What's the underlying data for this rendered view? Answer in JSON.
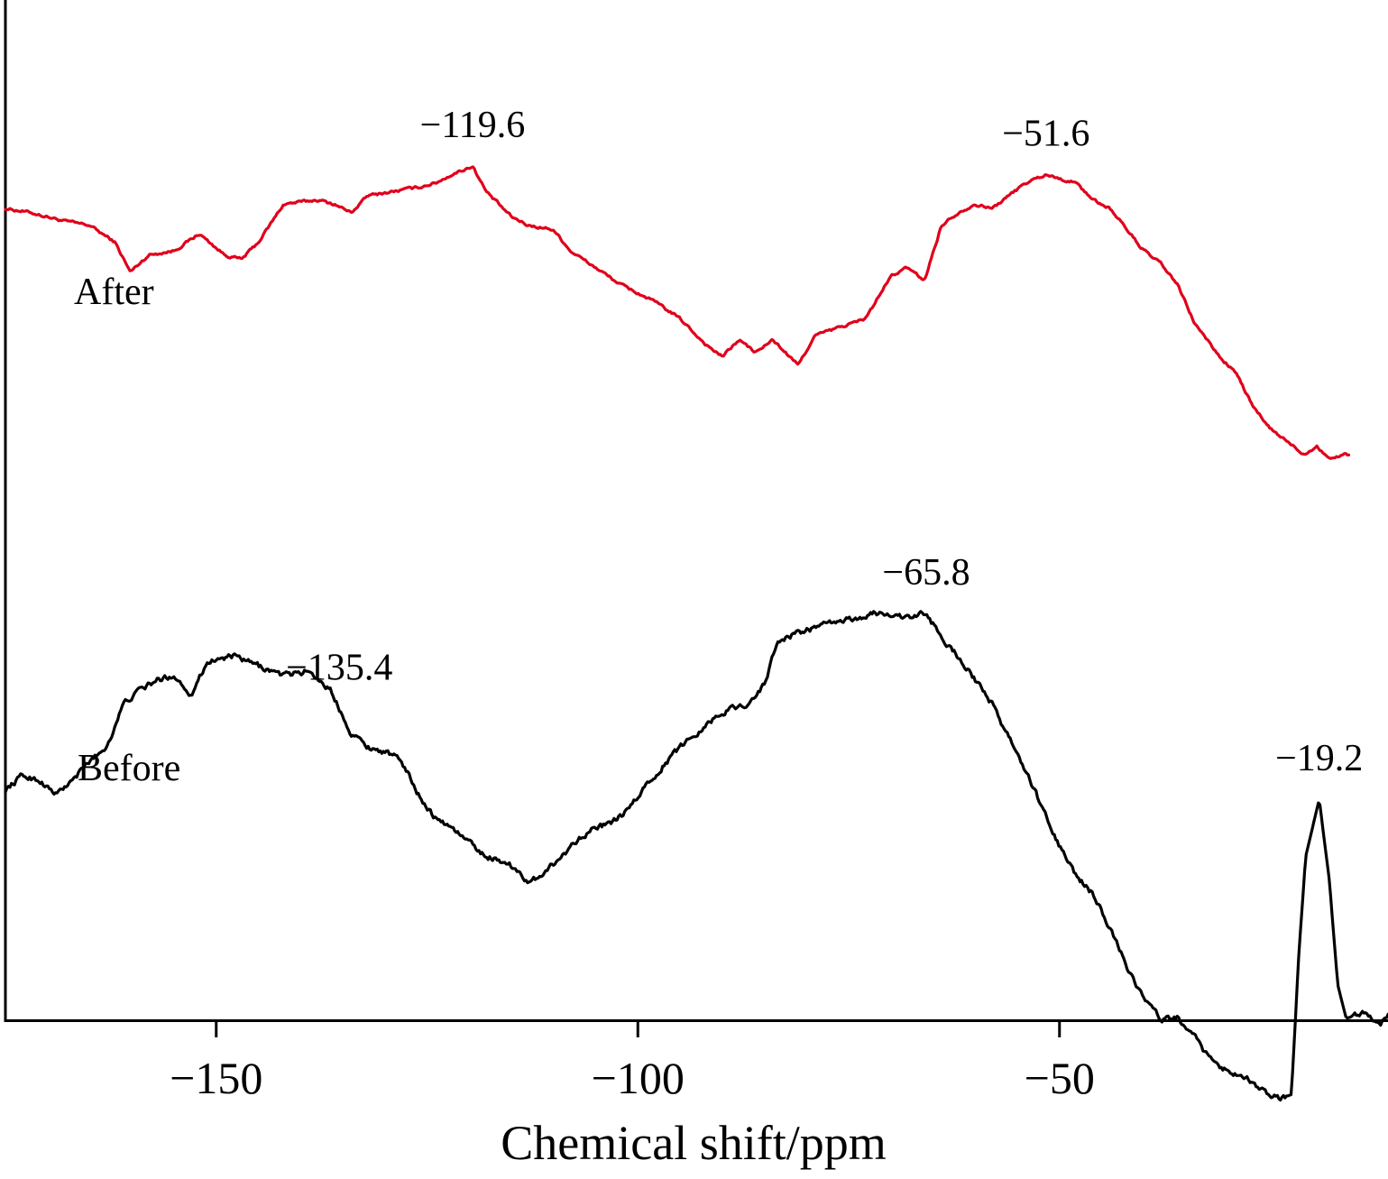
{
  "chart_data": {
    "type": "line",
    "xlabel": "Chemical shift/ppm",
    "ylabel": "",
    "xlim": [
      -175,
      -7
    ],
    "x_ticks": [
      -150,
      -100,
      -50
    ],
    "x_tick_labels": [
      "−150",
      "−100",
      "−50"
    ],
    "yticks": "none",
    "series": [
      {
        "name": "After",
        "color": "#e0001b",
        "points": [
          [
            -175,
            0.7
          ],
          [
            -172,
            0.69
          ],
          [
            -168,
            0.67
          ],
          [
            -165,
            0.66
          ],
          [
            -162,
            0.62
          ],
          [
            -160.2,
            0.55
          ],
          [
            -158,
            0.59
          ],
          [
            -155,
            0.6
          ],
          [
            -152,
            0.64
          ],
          [
            -149,
            0.59
          ],
          [
            -147,
            0.58
          ],
          [
            -145,
            0.62
          ],
          [
            -142,
            0.71
          ],
          [
            -138,
            0.72
          ],
          [
            -136,
            0.71
          ],
          [
            -134,
            0.69
          ],
          [
            -132,
            0.73
          ],
          [
            -129,
            0.74
          ],
          [
            -126,
            0.75
          ],
          [
            -124,
            0.76
          ],
          [
            -122,
            0.78
          ],
          [
            -119.6,
            0.8
          ],
          [
            -118,
            0.74
          ],
          [
            -115,
            0.68
          ],
          [
            -113,
            0.66
          ],
          [
            -110,
            0.65
          ],
          [
            -108,
            0.6
          ],
          [
            -105,
            0.56
          ],
          [
            -102,
            0.52
          ],
          [
            -98,
            0.48
          ],
          [
            -95,
            0.44
          ],
          [
            -92,
            0.38
          ],
          [
            -90,
            0.35
          ],
          [
            -88,
            0.39
          ],
          [
            -86,
            0.36
          ],
          [
            -84,
            0.39
          ],
          [
            -81,
            0.33
          ],
          [
            -79,
            0.4
          ],
          [
            -76,
            0.42
          ],
          [
            -73,
            0.44
          ],
          [
            -70,
            0.54
          ],
          [
            -68,
            0.56
          ],
          [
            -66,
            0.53
          ],
          [
            -64,
            0.66
          ],
          [
            -62,
            0.69
          ],
          [
            -60,
            0.71
          ],
          [
            -58,
            0.7
          ],
          [
            -56,
            0.73
          ],
          [
            -54,
            0.76
          ],
          [
            -51.6,
            0.78
          ],
          [
            -50,
            0.77
          ],
          [
            -48,
            0.76
          ],
          [
            -46,
            0.72
          ],
          [
            -44,
            0.7
          ],
          [
            -42,
            0.65
          ],
          [
            -40,
            0.6
          ],
          [
            -38,
            0.57
          ],
          [
            -36,
            0.52
          ],
          [
            -34,
            0.43
          ],
          [
            -31,
            0.35
          ],
          [
            -29,
            0.31
          ],
          [
            -27,
            0.23
          ],
          [
            -25,
            0.18
          ],
          [
            -23,
            0.15
          ],
          [
            -21,
            0.12
          ],
          [
            -19.5,
            0.14
          ],
          [
            -18,
            0.11
          ],
          [
            -16,
            0.12
          ],
          [
            -15.6,
            0.12
          ]
        ]
      },
      {
        "name": "Before",
        "color": "#000000",
        "points": [
          [
            -175,
            0.34
          ],
          [
            -173,
            0.37
          ],
          [
            -171,
            0.36
          ],
          [
            -169,
            0.33
          ],
          [
            -167,
            0.36
          ],
          [
            -165,
            0.4
          ],
          [
            -163,
            0.43
          ],
          [
            -161,
            0.52
          ],
          [
            -159,
            0.55
          ],
          [
            -157,
            0.57
          ],
          [
            -155,
            0.58
          ],
          [
            -153,
            0.54
          ],
          [
            -151,
            0.61
          ],
          [
            -148,
            0.62
          ],
          [
            -145,
            0.6
          ],
          [
            -142,
            0.58
          ],
          [
            -139,
            0.59
          ],
          [
            -136.5,
            0.55
          ],
          [
            -134,
            0.46
          ],
          [
            -132,
            0.43
          ],
          [
            -130,
            0.42
          ],
          [
            -128,
            0.4
          ],
          [
            -126,
            0.33
          ],
          [
            -124,
            0.28
          ],
          [
            -122,
            0.26
          ],
          [
            -120,
            0.23
          ],
          [
            -118,
            0.2
          ],
          [
            -116,
            0.19
          ],
          [
            -114,
            0.17
          ],
          [
            -113,
            0.14
          ],
          [
            -111,
            0.17
          ],
          [
            -109,
            0.2
          ],
          [
            -107,
            0.24
          ],
          [
            -105,
            0.26
          ],
          [
            -103,
            0.27
          ],
          [
            -101,
            0.3
          ],
          [
            -99,
            0.35
          ],
          [
            -97,
            0.39
          ],
          [
            -95,
            0.43
          ],
          [
            -93,
            0.46
          ],
          [
            -91,
            0.49
          ],
          [
            -89,
            0.51
          ],
          [
            -87,
            0.52
          ],
          [
            -85,
            0.56
          ],
          [
            -83.5,
            0.65
          ],
          [
            -81,
            0.67
          ],
          [
            -79,
            0.68
          ],
          [
            -77,
            0.69
          ],
          [
            -74,
            0.7
          ],
          [
            -72,
            0.71
          ],
          [
            -70,
            0.71
          ],
          [
            -68,
            0.7
          ],
          [
            -65.8,
            0.71
          ],
          [
            -64,
            0.66
          ],
          [
            -62,
            0.62
          ],
          [
            -60,
            0.57
          ],
          [
            -58,
            0.52
          ],
          [
            -56,
            0.45
          ],
          [
            -54,
            0.38
          ],
          [
            -52,
            0.3
          ],
          [
            -50,
            0.22
          ],
          [
            -48,
            0.16
          ],
          [
            -46,
            0.12
          ],
          [
            -44,
            0.05
          ],
          [
            -42,
            -0.03
          ],
          [
            -40,
            -0.1
          ],
          [
            -38,
            -0.14
          ],
          [
            -36,
            -0.14
          ],
          [
            -34,
            -0.18
          ],
          [
            -32,
            -0.23
          ],
          [
            -30,
            -0.25
          ],
          [
            -28,
            -0.26
          ],
          [
            -26,
            -0.29
          ],
          [
            -24,
            -0.31
          ],
          [
            -22.5,
            -0.3
          ],
          [
            -21.6,
            0.0
          ],
          [
            -20.8,
            0.2
          ],
          [
            -19.2,
            0.32
          ],
          [
            -18.0,
            0.15
          ],
          [
            -17.0,
            -0.07
          ],
          [
            -16.0,
            -0.14
          ],
          [
            -14,
            -0.13
          ],
          [
            -12,
            -0.15
          ],
          [
            -10,
            -0.12
          ],
          [
            -8,
            -0.08
          ],
          [
            -7,
            -0.05
          ]
        ]
      }
    ],
    "annotations": [
      {
        "text": "−119.6",
        "x": -119.6,
        "series": "After"
      },
      {
        "text": "−51.6",
        "x": -51.6,
        "series": "After"
      },
      {
        "text": "−135.4",
        "x": -135.4,
        "series": "Before"
      },
      {
        "text": "−65.8",
        "x": -65.8,
        "series": "Before"
      },
      {
        "text": "−19.2",
        "x": -19.2,
        "series": "Before"
      }
    ]
  }
}
